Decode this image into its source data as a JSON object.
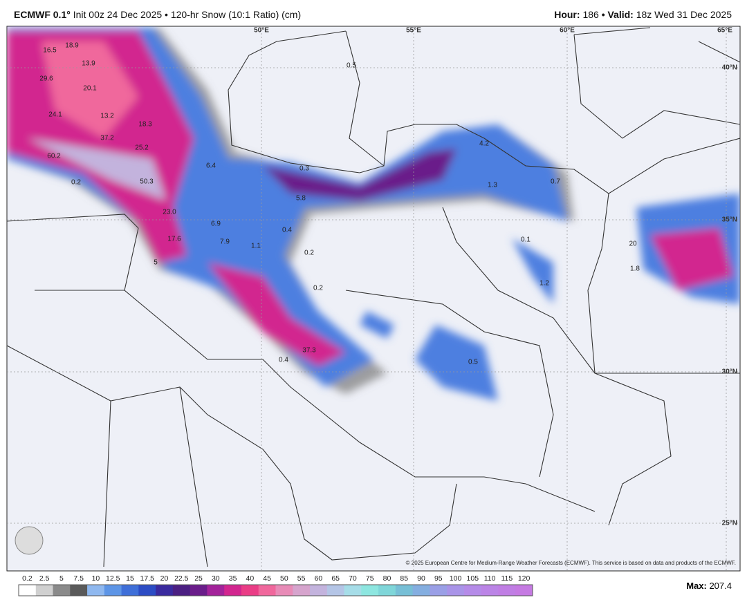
{
  "header": {
    "model": "ECMWF 0.1°",
    "init": "Init 00z 24 Dec 2025",
    "product": "• 120-hr Snow (10:1 Ratio) (cm)",
    "hour_label": "Hour:",
    "hour": "186",
    "valid_label": "• Valid:",
    "valid": "18z Wed 31 Dec 2025"
  },
  "map": {
    "lon_labels": [
      "50°E",
      "55°E",
      "60°E",
      "65°E"
    ],
    "lat_labels": [
      "40°N",
      "35°N",
      "30°N",
      "25°N"
    ],
    "point_labels": [
      "16.5",
      "18.9",
      "13.9",
      "29.6",
      "20.1",
      "24.1",
      "13.2",
      "18.3",
      "37.2",
      "25.2",
      "60.2",
      "0.2",
      "50.3",
      "6.4",
      "0.3",
      "5.8",
      "23.0",
      "6.9",
      "0.4",
      "17.6",
      "7.9",
      "1.1",
      "0.2",
      "5",
      "0.2",
      "37.3",
      "0.4",
      "0.5",
      "4.2",
      "1.3",
      "0.7",
      "0.1",
      "1.2",
      "20",
      "1.8",
      "0.5"
    ],
    "copyright": "© 2025 European Centre for Medium-Range Weather Forecasts (ECMWF). This service is based on data and products of the ECMWF."
  },
  "colorbar": {
    "ticks": [
      0.2,
      2.5,
      5,
      7.5,
      10,
      12.5,
      15,
      17.5,
      20,
      22.5,
      25,
      30,
      35,
      40,
      45,
      50,
      55,
      60,
      65,
      70,
      75,
      80,
      85,
      90,
      95,
      100,
      105,
      110,
      115,
      120
    ],
    "colors": [
      "#ffffff",
      "#d0d0d0",
      "#8a8a8a",
      "#5a5a5a",
      "#8fb8ef",
      "#5d95e6",
      "#3f6fd8",
      "#2c4cc4",
      "#3a2a9e",
      "#4b1f82",
      "#6a1d8a",
      "#a3239a",
      "#d2268f",
      "#ea3d86",
      "#f0679c",
      "#e88bb7",
      "#d6a4cd",
      "#c3b3dd",
      "#b4c5e6",
      "#a6dde8",
      "#8de6e0",
      "#7fd6d9",
      "#77bfd6",
      "#84aee0",
      "#9a9fe6",
      "#a994e8",
      "#b58be8",
      "#bb84e6",
      "#c07ee4",
      "#c57ae2"
    ]
  },
  "footer": {
    "max_label": "Max:",
    "max": "207.4"
  }
}
